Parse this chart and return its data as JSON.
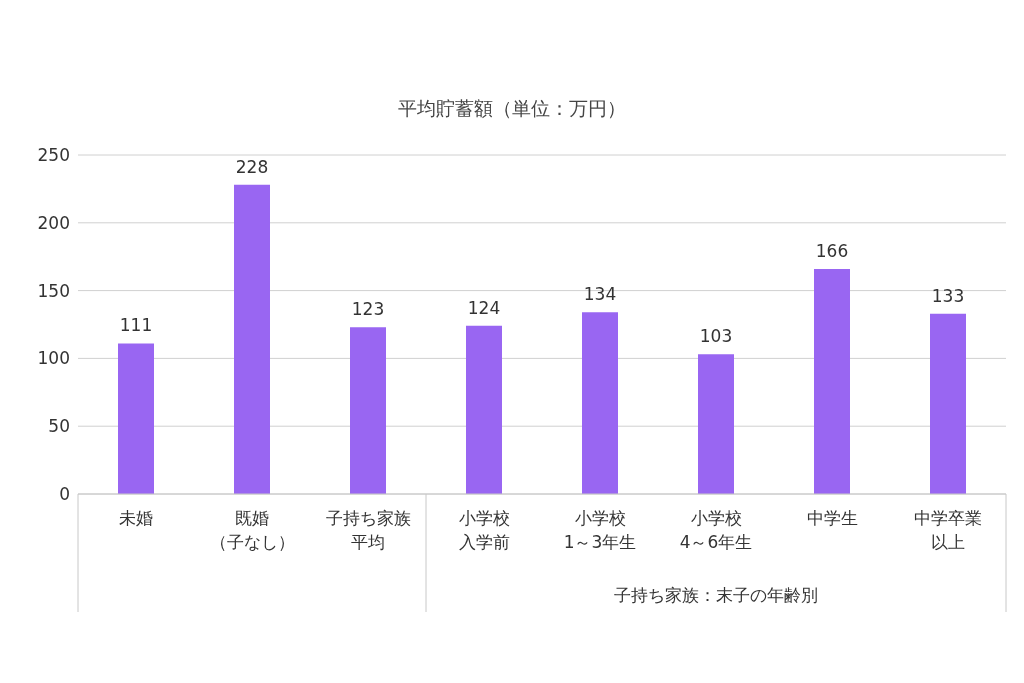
{
  "chart_data": {
    "type": "bar",
    "title": "平均貯蓄額（単位：万円）",
    "categories": [
      "未婚",
      "既婚（子なし）",
      "子持ち家族平均",
      "小学校入学前",
      "小学校1～3年生",
      "小学校4～6年生",
      "中学生",
      "中学卒業以上"
    ],
    "values": [
      111,
      228,
      123,
      124,
      134,
      103,
      166,
      133
    ],
    "color": "#9966f2",
    "ylim": [
      0,
      250
    ],
    "yticks": [
      0,
      50,
      100,
      150,
      200,
      250
    ],
    "grid": "y",
    "data_labels": true,
    "annotations": [
      "子持ち家族：末子の年齢別"
    ]
  }
}
